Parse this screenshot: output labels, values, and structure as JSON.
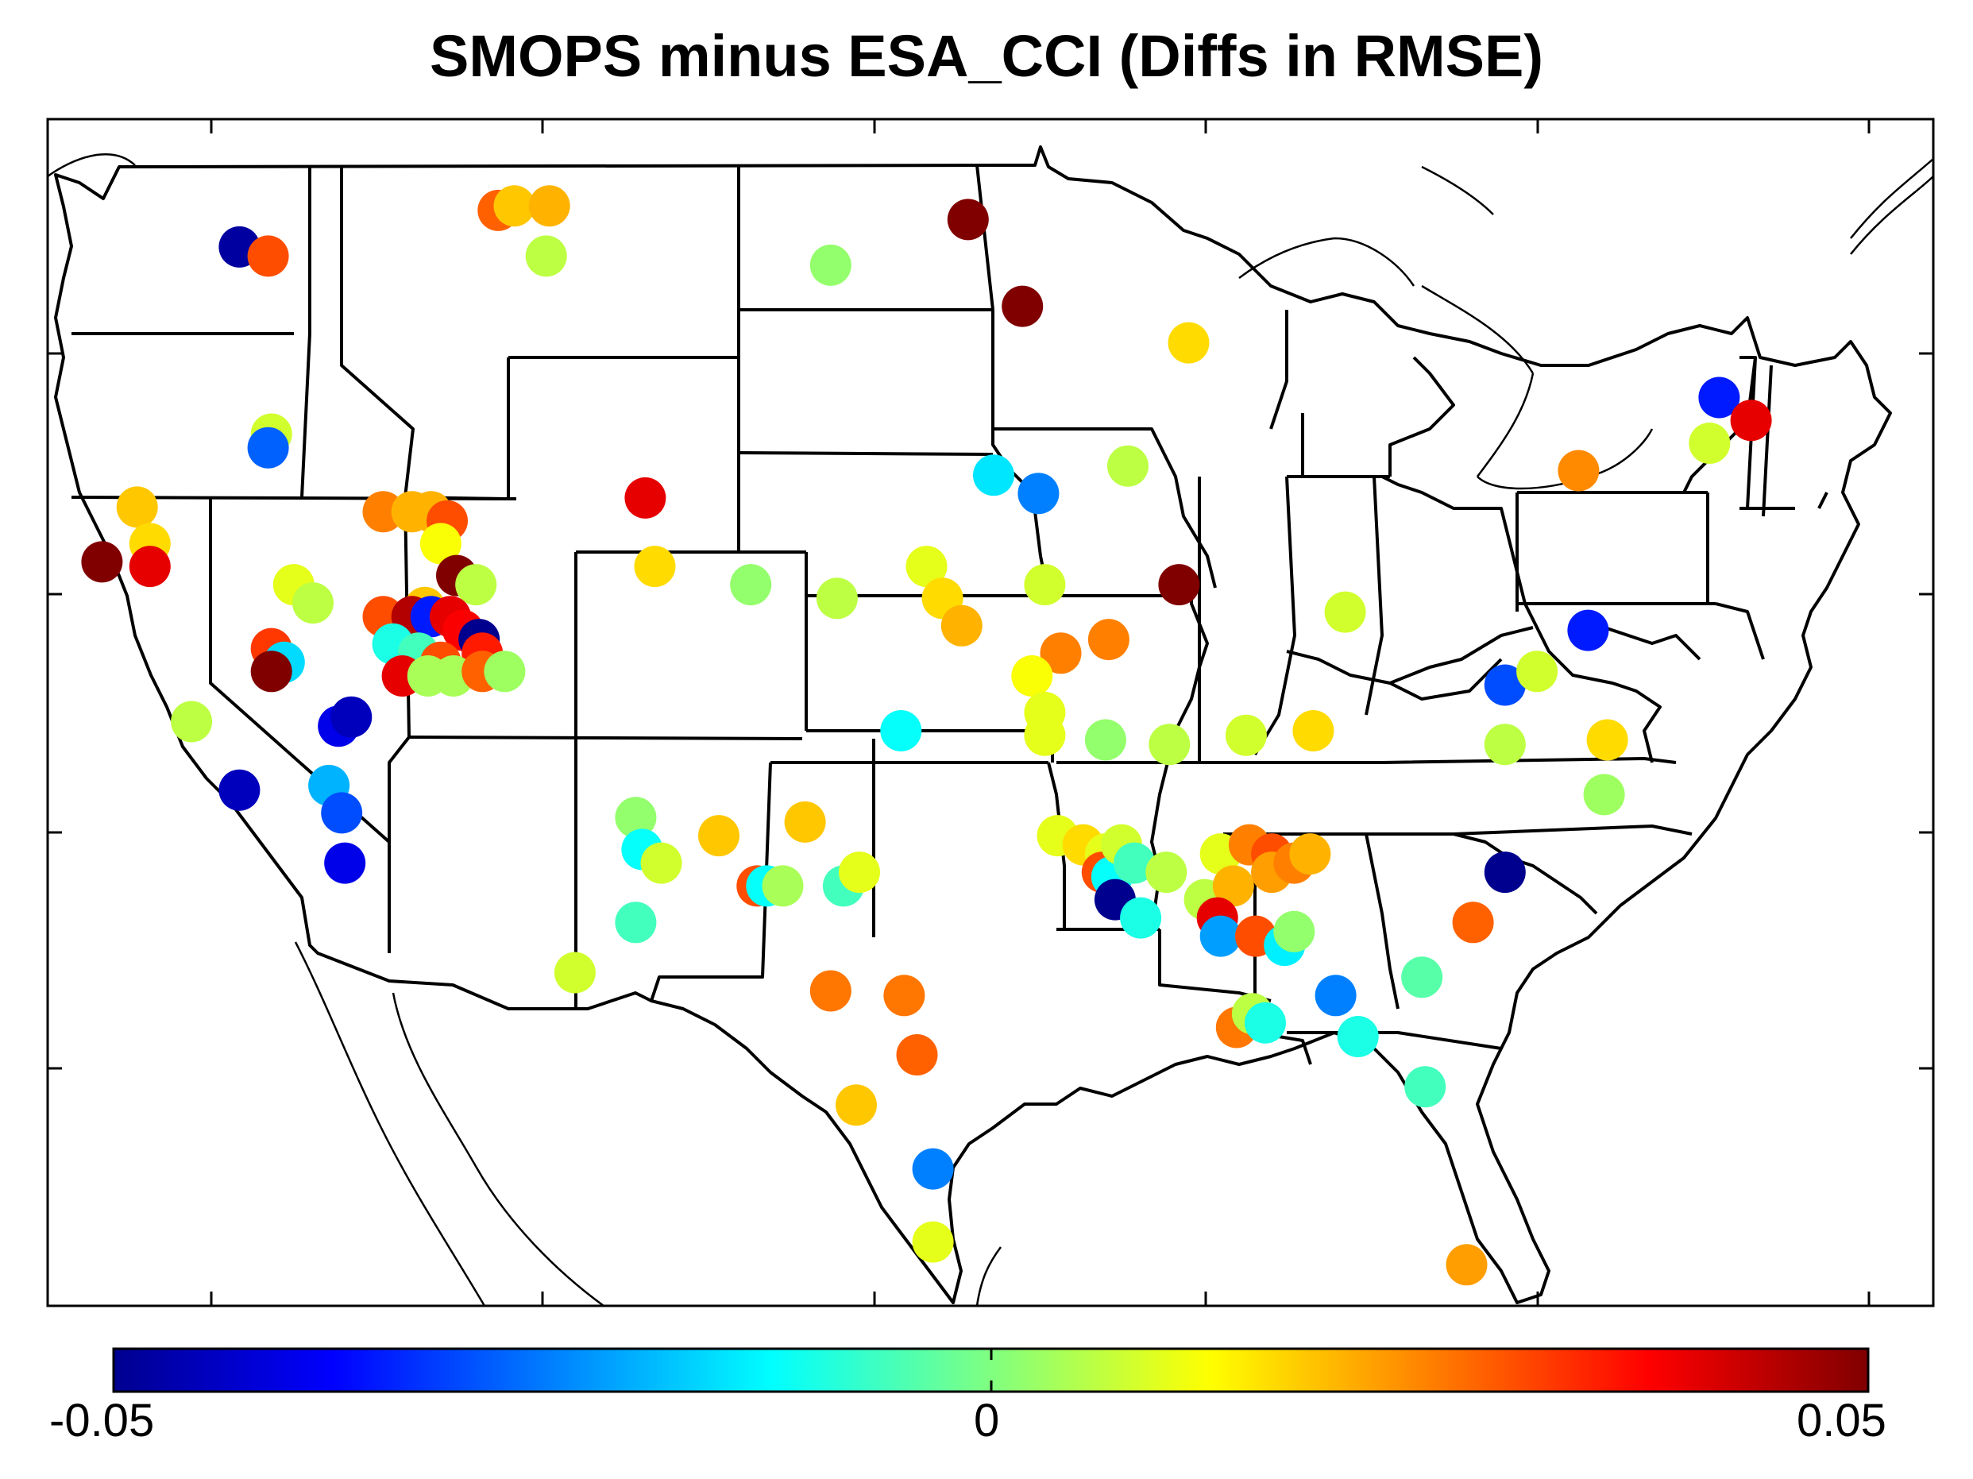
{
  "title": "SMOPS minus ESA_CCI (Diffs in RMSE)",
  "colorbar": {
    "min_label": "-0.05",
    "mid_label": "0",
    "max_label": "0.05",
    "min": -0.05,
    "max": 0.05,
    "colormap": "jet",
    "stops": [
      "#00008f",
      "#0000ff",
      "#0080ff",
      "#00ffff",
      "#80ff80",
      "#ffff00",
      "#ff8000",
      "#ff0000",
      "#800000"
    ]
  },
  "stations": [
    {
      "lon": -119.5,
      "lat": 47.7,
      "value": -0.048
    },
    {
      "lon": -118.6,
      "lat": 47.5,
      "value": 0.03
    },
    {
      "lon": -111.4,
      "lat": 48.5,
      "value": 0.028
    },
    {
      "lon": -110.9,
      "lat": 48.6,
      "value": 0.018
    },
    {
      "lon": -109.8,
      "lat": 48.6,
      "value": 0.02
    },
    {
      "lon": -109.9,
      "lat": 47.5,
      "value": 0.006
    },
    {
      "lon": -101.0,
      "lat": 47.3,
      "value": 0.002
    },
    {
      "lon": -96.7,
      "lat": 48.3,
      "value": 0.05
    },
    {
      "lon": -95.0,
      "lat": 46.4,
      "value": 0.05
    },
    {
      "lon": -89.8,
      "lat": 45.6,
      "value": 0.016
    },
    {
      "lon": -73.2,
      "lat": 44.4,
      "value": -0.035
    },
    {
      "lon": -72.2,
      "lat": 43.9,
      "value": 0.04
    },
    {
      "lon": -73.5,
      "lat": 43.4,
      "value": 0.008
    },
    {
      "lon": -77.6,
      "lat": 42.8,
      "value": 0.024
    },
    {
      "lon": -118.5,
      "lat": 43.6,
      "value": 0.008
    },
    {
      "lon": -118.6,
      "lat": 43.3,
      "value": -0.028
    },
    {
      "lon": -122.7,
      "lat": 42.0,
      "value": 0.018
    },
    {
      "lon": -122.3,
      "lat": 41.2,
      "value": 0.016
    },
    {
      "lon": -123.8,
      "lat": 40.8,
      "value": 0.05
    },
    {
      "lon": -122.3,
      "lat": 40.7,
      "value": 0.04
    },
    {
      "lon": -115.0,
      "lat": 41.9,
      "value": 0.025
    },
    {
      "lon": -114.1,
      "lat": 41.9,
      "value": 0.02
    },
    {
      "lon": -113.5,
      "lat": 41.9,
      "value": 0.02
    },
    {
      "lon": -113.0,
      "lat": 41.7,
      "value": 0.03
    },
    {
      "lon": -113.2,
      "lat": 41.2,
      "value": 0.012
    },
    {
      "lon": -112.7,
      "lat": 40.5,
      "value": 0.05
    },
    {
      "lon": -112.1,
      "lat": 40.3,
      "value": 0.006
    },
    {
      "lon": -113.7,
      "lat": 39.8,
      "value": 0.018
    },
    {
      "lon": -115.0,
      "lat": 39.6,
      "value": 0.03
    },
    {
      "lon": -114.1,
      "lat": 39.6,
      "value": 0.045
    },
    {
      "lon": -113.5,
      "lat": 39.6,
      "value": -0.035
    },
    {
      "lon": -112.9,
      "lat": 39.6,
      "value": 0.04
    },
    {
      "lon": -112.5,
      "lat": 39.3,
      "value": 0.038
    },
    {
      "lon": -112.0,
      "lat": 39.1,
      "value": -0.05
    },
    {
      "lon": -111.9,
      "lat": 38.8,
      "value": 0.035
    },
    {
      "lon": -114.7,
      "lat": 39.0,
      "value": -0.01
    },
    {
      "lon": -113.9,
      "lat": 38.8,
      "value": -0.006
    },
    {
      "lon": -113.2,
      "lat": 38.6,
      "value": 0.03
    },
    {
      "lon": -114.4,
      "lat": 38.3,
      "value": 0.04
    },
    {
      "lon": -113.6,
      "lat": 38.3,
      "value": 0.004
    },
    {
      "lon": -112.8,
      "lat": 38.3,
      "value": 0.004
    },
    {
      "lon": -111.9,
      "lat": 38.4,
      "value": 0.028
    },
    {
      "lon": -117.8,
      "lat": 40.3,
      "value": 0.01
    },
    {
      "lon": -117.2,
      "lat": 39.9,
      "value": 0.006
    },
    {
      "lon": -118.5,
      "lat": 38.9,
      "value": 0.032
    },
    {
      "lon": -118.1,
      "lat": 38.6,
      "value": -0.016
    },
    {
      "lon": -118.5,
      "lat": 38.4,
      "value": 0.05
    },
    {
      "lon": -116.4,
      "lat": 37.2,
      "value": -0.04
    },
    {
      "lon": -116.0,
      "lat": 37.4,
      "value": -0.045
    },
    {
      "lon": -121.0,
      "lat": 37.3,
      "value": 0.006
    },
    {
      "lon": -119.5,
      "lat": 35.8,
      "value": -0.045
    },
    {
      "lon": -116.7,
      "lat": 35.9,
      "value": -0.02
    },
    {
      "lon": -116.3,
      "lat": 35.3,
      "value": -0.03
    },
    {
      "lon": -116.2,
      "lat": 34.2,
      "value": -0.04
    },
    {
      "lon": -111.2,
      "lat": 38.4,
      "value": 0.003
    },
    {
      "lon": -106.8,
      "lat": 42.2,
      "value": 0.04
    },
    {
      "lon": -106.5,
      "lat": 40.7,
      "value": 0.016
    },
    {
      "lon": -103.5,
      "lat": 40.3,
      "value": 0.002
    },
    {
      "lon": -100.8,
      "lat": 40.0,
      "value": 0.006
    },
    {
      "lon": -98.0,
      "lat": 40.7,
      "value": 0.01
    },
    {
      "lon": -97.5,
      "lat": 40.0,
      "value": 0.016
    },
    {
      "lon": -96.9,
      "lat": 39.4,
      "value": 0.02
    },
    {
      "lon": -95.9,
      "lat": 42.7,
      "value": -0.015
    },
    {
      "lon": -94.5,
      "lat": 42.3,
      "value": -0.025
    },
    {
      "lon": -94.3,
      "lat": 40.3,
      "value": 0.008
    },
    {
      "lon": -91.7,
      "lat": 42.9,
      "value": 0.006
    },
    {
      "lon": -90.1,
      "lat": 40.3,
      "value": 0.05
    },
    {
      "lon": -92.3,
      "lat": 39.1,
      "value": 0.025
    },
    {
      "lon": -93.8,
      "lat": 38.8,
      "value": 0.025
    },
    {
      "lon": -94.7,
      "lat": 38.3,
      "value": 0.012
    },
    {
      "lon": -94.3,
      "lat": 37.5,
      "value": 0.01
    },
    {
      "lon": -94.3,
      "lat": 37.0,
      "value": 0.01
    },
    {
      "lon": -92.4,
      "lat": 36.9,
      "value": 0.002
    },
    {
      "lon": -90.4,
      "lat": 36.8,
      "value": 0.006
    },
    {
      "lon": -98.8,
      "lat": 37.1,
      "value": -0.012
    },
    {
      "lon": -88.0,
      "lat": 37.0,
      "value": 0.008
    },
    {
      "lon": -85.9,
      "lat": 37.1,
      "value": 0.016
    },
    {
      "lon": -84.9,
      "lat": 39.7,
      "value": 0.008
    },
    {
      "lon": -79.9,
      "lat": 38.1,
      "value": -0.03
    },
    {
      "lon": -78.9,
      "lat": 38.4,
      "value": 0.008
    },
    {
      "lon": -77.3,
      "lat": 39.3,
      "value": -0.035
    },
    {
      "lon": -76.7,
      "lat": 36.9,
      "value": 0.016
    },
    {
      "lon": -76.8,
      "lat": 35.7,
      "value": 0.003
    },
    {
      "lon": -79.9,
      "lat": 36.8,
      "value": 0.006
    },
    {
      "lon": -79.9,
      "lat": 34.0,
      "value": -0.05
    },
    {
      "lon": -80.9,
      "lat": 32.9,
      "value": 0.028
    },
    {
      "lon": -107.1,
      "lat": 35.2,
      "value": 0.002
    },
    {
      "lon": -106.9,
      "lat": 34.5,
      "value": -0.012
    },
    {
      "lon": -106.3,
      "lat": 34.2,
      "value": 0.008
    },
    {
      "lon": -107.1,
      "lat": 32.9,
      "value": -0.006
    },
    {
      "lon": -104.5,
      "lat": 34.8,
      "value": 0.018
    },
    {
      "lon": -101.8,
      "lat": 35.1,
      "value": 0.018
    },
    {
      "lon": -103.3,
      "lat": 33.7,
      "value": 0.03
    },
    {
      "lon": -103.0,
      "lat": 33.7,
      "value": -0.012
    },
    {
      "lon": -102.5,
      "lat": 33.7,
      "value": 0.004
    },
    {
      "lon": -100.6,
      "lat": 33.7,
      "value": -0.006
    },
    {
      "lon": -100.1,
      "lat": 34.0,
      "value": 0.01
    },
    {
      "lon": -109.0,
      "lat": 31.8,
      "value": 0.008
    },
    {
      "lon": -101.0,
      "lat": 31.4,
      "value": 0.026
    },
    {
      "lon": -98.7,
      "lat": 31.3,
      "value": 0.026
    },
    {
      "lon": -98.3,
      "lat": 30.0,
      "value": 0.028
    },
    {
      "lon": -100.2,
      "lat": 28.9,
      "value": 0.018
    },
    {
      "lon": -97.8,
      "lat": 27.5,
      "value": -0.025
    },
    {
      "lon": -97.8,
      "lat": 25.9,
      "value": 0.01
    },
    {
      "lon": -93.9,
      "lat": 34.8,
      "value": 0.01
    },
    {
      "lon": -93.1,
      "lat": 34.6,
      "value": 0.016
    },
    {
      "lon": -92.4,
      "lat": 34.4,
      "value": 0.01
    },
    {
      "lon": -92.5,
      "lat": 34.0,
      "value": 0.03
    },
    {
      "lon": -92.2,
      "lat": 33.9,
      "value": -0.012
    },
    {
      "lon": -91.9,
      "lat": 34.6,
      "value": 0.008
    },
    {
      "lon": -91.5,
      "lat": 34.2,
      "value": -0.006
    },
    {
      "lon": -92.1,
      "lat": 33.4,
      "value": -0.05
    },
    {
      "lon": -91.3,
      "lat": 33.0,
      "value": -0.01
    },
    {
      "lon": -90.5,
      "lat": 34.0,
      "value": 0.006
    },
    {
      "lon": -89.3,
      "lat": 33.4,
      "value": 0.006
    },
    {
      "lon": -88.8,
      "lat": 34.4,
      "value": 0.01
    },
    {
      "lon": -88.4,
      "lat": 33.7,
      "value": 0.02
    },
    {
      "lon": -87.9,
      "lat": 34.6,
      "value": 0.025
    },
    {
      "lon": -87.2,
      "lat": 34.4,
      "value": 0.03
    },
    {
      "lon": -87.2,
      "lat": 34.0,
      "value": 0.022
    },
    {
      "lon": -86.5,
      "lat": 34.2,
      "value": 0.025
    },
    {
      "lon": -86.0,
      "lat": 34.4,
      "value": 0.02
    },
    {
      "lon": -88.9,
      "lat": 33.0,
      "value": 0.04
    },
    {
      "lon": -88.8,
      "lat": 32.6,
      "value": -0.022
    },
    {
      "lon": -87.7,
      "lat": 32.6,
      "value": 0.03
    },
    {
      "lon": -86.8,
      "lat": 32.4,
      "value": -0.014
    },
    {
      "lon": -86.5,
      "lat": 32.7,
      "value": 0.002
    },
    {
      "lon": -85.2,
      "lat": 31.3,
      "value": -0.025
    },
    {
      "lon": -88.3,
      "lat": 30.6,
      "value": 0.026
    },
    {
      "lon": -87.8,
      "lat": 30.9,
      "value": 0.006
    },
    {
      "lon": -87.4,
      "lat": 30.7,
      "value": -0.01
    },
    {
      "lon": -84.5,
      "lat": 30.4,
      "value": -0.01
    },
    {
      "lon": -82.5,
      "lat": 31.7,
      "value": -0.004
    },
    {
      "lon": -82.4,
      "lat": 29.3,
      "value": -0.006
    },
    {
      "lon": -81.1,
      "lat": 25.4,
      "value": 0.022
    }
  ]
}
